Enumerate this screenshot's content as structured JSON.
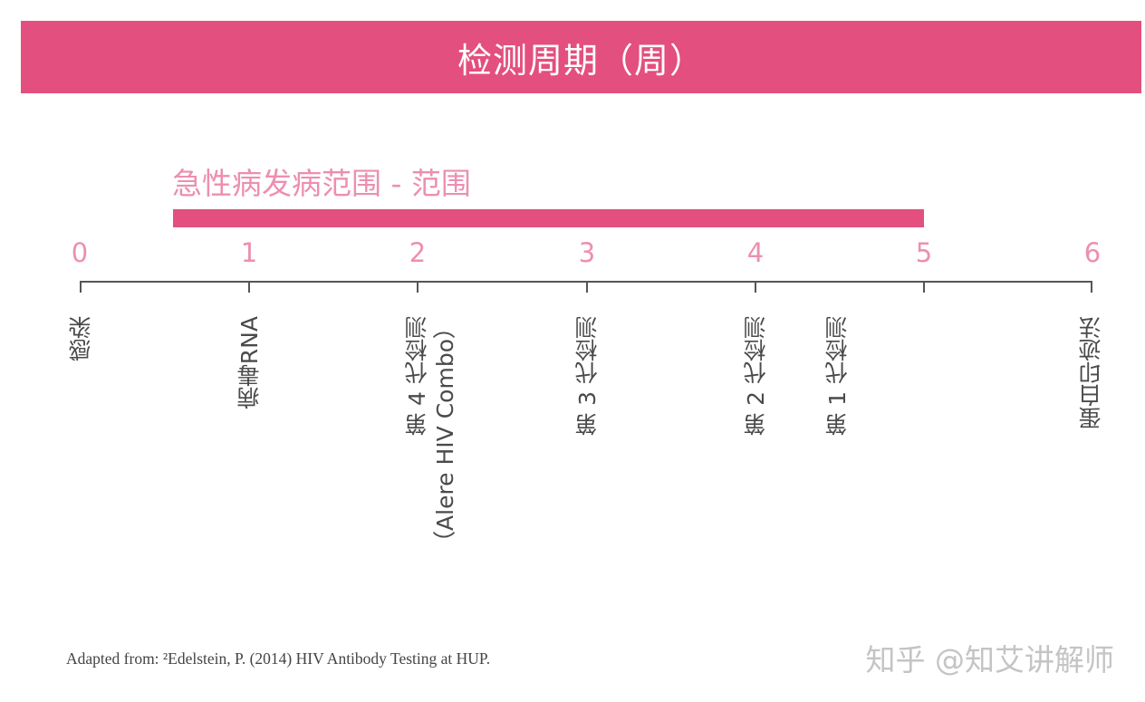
{
  "header": {
    "title": "检测周期（周）"
  },
  "range": {
    "label": "急性病发病范围 - 范围",
    "start_week": 0.55,
    "end_week": 5,
    "color": "#e34f7e"
  },
  "axis": {
    "ticks": [
      "0",
      "1",
      "2",
      "3",
      "4",
      "5",
      "6"
    ],
    "tick_color": "#ec8fb0",
    "line_color": "#555555"
  },
  "events": [
    {
      "week": 0,
      "line1": "感染",
      "line2": ""
    },
    {
      "week": 1,
      "line1": "病毒RNA",
      "line2": ""
    },
    {
      "week": 2,
      "line1": "第 4 代检测",
      "line2": "（Alere HIV Combo）"
    },
    {
      "week": 3,
      "line1": "第 3 代检测",
      "line2": ""
    },
    {
      "week": 4,
      "line1": "第 2 代检测",
      "line2": ""
    },
    {
      "week": 4.5,
      "line1": "第 1 代检测",
      "line2": ""
    },
    {
      "week": 6,
      "line1": "蛋白印迹法",
      "line2": ""
    }
  ],
  "footer": {
    "citation": "Adapted from: ²Edelstein, P. (2014) HIV Antibody Testing at HUP.",
    "watermark": "知乎 @知艾讲解师"
  }
}
